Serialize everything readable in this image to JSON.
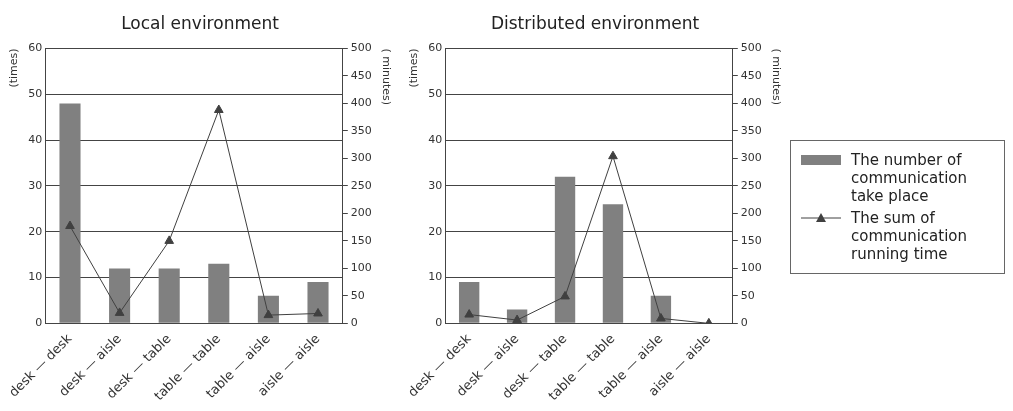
{
  "chart_data": [
    {
      "type": "bar",
      "title": "Local environment",
      "ylabel": "(times)",
      "y2label": "( minutes)",
      "categories": [
        "desk — desk",
        "desk — aisle",
        "desk — table",
        "table — table",
        "table — aisle",
        "aisle — aisle"
      ],
      "series": [
        {
          "color": "#808080",
          "values": [
            48,
            12,
            12,
            13,
            6,
            9
          ]
        },
        {
          "type": "line",
          "axis": "y2",
          "color": "#404040",
          "marker": "triangle",
          "values": [
            177,
            19,
            150,
            388,
            15,
            18
          ]
        }
      ],
      "ylim": [
        0,
        60
      ],
      "yticks": [
        0,
        10,
        20,
        30,
        40,
        50,
        60
      ],
      "y2lim": [
        0,
        500
      ],
      "y2ticks": [
        0,
        50,
        100,
        150,
        200,
        250,
        300,
        350,
        400,
        450,
        500
      ],
      "grid": "y",
      "legend": false
    },
    {
      "type": "bar",
      "title": "Distributed environment",
      "ylabel": "(times)",
      "y2label": "( minutes)",
      "categories": [
        "desk — desk",
        "desk — aisle",
        "desk — table",
        "table — table",
        "table — aisle",
        "aisle — aisle"
      ],
      "series": [
        {
          "name": "The number of communication take place",
          "color": "#808080",
          "values": [
            9,
            3,
            32,
            26,
            6,
            0
          ]
        },
        {
          "type": "line",
          "axis": "y2",
          "name": "The sum of communication running time",
          "color": "#404040",
          "marker": "triangle",
          "values": [
            16,
            6,
            49,
            304,
            9,
            0
          ]
        }
      ],
      "ylim": [
        0,
        60
      ],
      "yticks": [
        0,
        10,
        20,
        30,
        40,
        50,
        60
      ],
      "y2lim": [
        0,
        500
      ],
      "y2ticks": [
        0,
        50,
        100,
        150,
        200,
        250,
        300,
        350,
        400,
        450,
        500
      ],
      "grid": "y",
      "legend": "right"
    }
  ]
}
